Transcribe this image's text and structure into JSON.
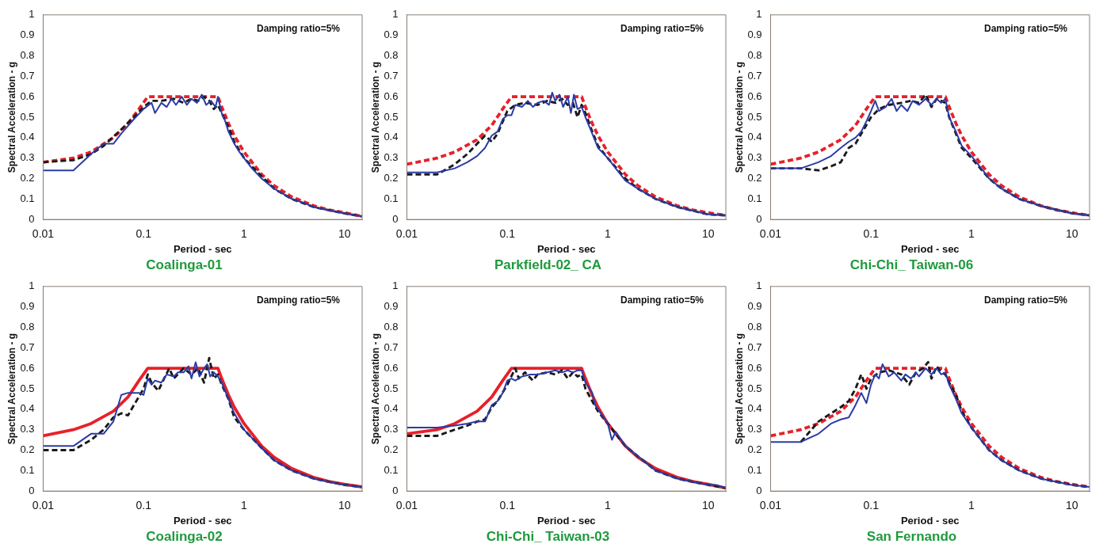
{
  "chart_data": [
    {
      "type": "line",
      "title": "Coalinga-01",
      "xlabel": "Period - sec",
      "ylabel": "Spectral Acceleration - g",
      "annotations": [
        "Damping ratio=5%"
      ],
      "log": "x",
      "grid": false,
      "marker": "none",
      "xlim": [
        0.01,
        15
      ],
      "xticks": [
        0.01,
        0.1,
        1,
        10
      ],
      "ylim": [
        0,
        1
      ],
      "yticks": [
        0,
        0.1,
        0.2,
        0.3,
        0.4,
        0.5,
        0.6,
        0.7,
        0.8,
        0.9,
        1
      ],
      "series": [
        {
          "color": "#2b3ba6",
          "line_style": "solid",
          "x": [
            0.01,
            0.02,
            0.03,
            0.04,
            0.05,
            0.06,
            0.08,
            0.1,
            0.12,
            0.13,
            0.15,
            0.17,
            0.19,
            0.21,
            0.24,
            0.27,
            0.3,
            0.34,
            0.38,
            0.42,
            0.47,
            0.52,
            0.55,
            0.6,
            0.65,
            0.7,
            0.8,
            0.9,
            1,
            1.2,
            1.5,
            2,
            3,
            4,
            5,
            7,
            10,
            15
          ],
          "values": [
            0.24,
            0.24,
            0.32,
            0.37,
            0.37,
            0.42,
            0.49,
            0.54,
            0.57,
            0.52,
            0.57,
            0.55,
            0.59,
            0.56,
            0.6,
            0.56,
            0.59,
            0.57,
            0.61,
            0.56,
            0.58,
            0.55,
            0.6,
            0.52,
            0.48,
            0.43,
            0.37,
            0.33,
            0.3,
            0.25,
            0.2,
            0.15,
            0.1,
            0.08,
            0.06,
            0.045,
            0.03,
            0.015
          ]
        },
        {
          "color": "#1a1a1a",
          "line_style": "dashed",
          "x": [
            0.01,
            0.02,
            0.03,
            0.04,
            0.06,
            0.08,
            0.1,
            0.12,
            0.15,
            0.2,
            0.25,
            0.3,
            0.35,
            0.4,
            0.45,
            0.5,
            0.55,
            0.6,
            0.7,
            0.8,
            1,
            1.5,
            2,
            3,
            5,
            10,
            15
          ],
          "values": [
            0.28,
            0.29,
            0.32,
            0.36,
            0.44,
            0.5,
            0.55,
            0.58,
            0.58,
            0.59,
            0.57,
            0.59,
            0.58,
            0.6,
            0.58,
            0.54,
            0.56,
            0.52,
            0.45,
            0.38,
            0.3,
            0.21,
            0.15,
            0.1,
            0.06,
            0.03,
            0.015
          ]
        },
        {
          "color": "#e8202a",
          "line_style": "dashed",
          "x": [
            0.01,
            0.02,
            0.03,
            0.05,
            0.07,
            0.09,
            0.11,
            0.55,
            0.6,
            0.7,
            0.8,
            1,
            1.5,
            2,
            3,
            5,
            7,
            10,
            15
          ],
          "values": [
            0.28,
            0.3,
            0.33,
            0.4,
            0.47,
            0.54,
            0.6,
            0.6,
            0.55,
            0.47,
            0.41,
            0.33,
            0.22,
            0.165,
            0.11,
            0.066,
            0.047,
            0.033,
            0.015
          ]
        }
      ]
    },
    {
      "type": "line",
      "title": "Parkfield-02_ CA",
      "xlabel": "Period - sec",
      "ylabel": "Spectral Acceleration - g",
      "annotations": [
        "Damping ratio=5%"
      ],
      "log": "x",
      "grid": false,
      "marker": "none",
      "xlim": [
        0.01,
        15
      ],
      "xticks": [
        0.01,
        0.1,
        1,
        10
      ],
      "ylim": [
        0,
        1
      ],
      "yticks": [
        0,
        0.1,
        0.2,
        0.3,
        0.4,
        0.5,
        0.6,
        0.7,
        0.8,
        0.9,
        1
      ],
      "series": [
        {
          "color": "#2b3ba6",
          "line_style": "solid",
          "x": [
            0.01,
            0.02,
            0.03,
            0.04,
            0.05,
            0.06,
            0.07,
            0.08,
            0.09,
            0.1,
            0.11,
            0.12,
            0.14,
            0.16,
            0.18,
            0.2,
            0.23,
            0.26,
            0.28,
            0.3,
            0.33,
            0.36,
            0.4,
            0.43,
            0.46,
            0.5,
            0.55,
            0.6,
            0.7,
            0.8,
            1,
            1.2,
            1.5,
            2,
            3,
            5,
            10,
            15
          ],
          "values": [
            0.23,
            0.23,
            0.25,
            0.28,
            0.31,
            0.35,
            0.41,
            0.43,
            0.49,
            0.51,
            0.51,
            0.56,
            0.55,
            0.58,
            0.55,
            0.57,
            0.58,
            0.56,
            0.62,
            0.58,
            0.61,
            0.55,
            0.6,
            0.52,
            0.61,
            0.54,
            0.55,
            0.5,
            0.42,
            0.35,
            0.3,
            0.25,
            0.19,
            0.15,
            0.1,
            0.06,
            0.025,
            0.02
          ]
        },
        {
          "color": "#1a1a1a",
          "line_style": "dashed",
          "x": [
            0.01,
            0.02,
            0.03,
            0.04,
            0.05,
            0.06,
            0.07,
            0.08,
            0.1,
            0.12,
            0.15,
            0.2,
            0.25,
            0.3,
            0.35,
            0.4,
            0.45,
            0.5,
            0.55,
            0.6,
            0.7,
            0.8,
            1,
            1.5,
            2,
            3,
            5,
            10,
            15
          ],
          "values": [
            0.22,
            0.22,
            0.27,
            0.32,
            0.37,
            0.41,
            0.38,
            0.42,
            0.53,
            0.56,
            0.57,
            0.56,
            0.58,
            0.57,
            0.59,
            0.56,
            0.57,
            0.5,
            0.56,
            0.52,
            0.43,
            0.36,
            0.3,
            0.2,
            0.15,
            0.1,
            0.06,
            0.025,
            0.02
          ]
        },
        {
          "color": "#e8202a",
          "line_style": "dashed",
          "x": [
            0.01,
            0.02,
            0.03,
            0.05,
            0.07,
            0.09,
            0.11,
            0.55,
            0.6,
            0.7,
            0.8,
            1,
            1.5,
            2,
            3,
            5,
            7,
            10,
            15
          ],
          "values": [
            0.27,
            0.3,
            0.33,
            0.39,
            0.46,
            0.54,
            0.6,
            0.6,
            0.55,
            0.47,
            0.41,
            0.33,
            0.22,
            0.165,
            0.11,
            0.066,
            0.047,
            0.033,
            0.02
          ]
        }
      ]
    },
    {
      "type": "line",
      "title": "Chi-Chi_ Taiwan-06",
      "xlabel": "Period - sec",
      "ylabel": "Spectral Acceleration - g",
      "annotations": [
        "Damping ratio=5%"
      ],
      "log": "x",
      "grid": false,
      "marker": "none",
      "xlim": [
        0.01,
        15
      ],
      "xticks": [
        0.01,
        0.1,
        1,
        10
      ],
      "ylim": [
        0,
        1
      ],
      "yticks": [
        0,
        0.1,
        0.2,
        0.3,
        0.4,
        0.5,
        0.6,
        0.7,
        0.8,
        0.9,
        1
      ],
      "series": [
        {
          "color": "#2b3ba6",
          "line_style": "solid",
          "x": [
            0.01,
            0.02,
            0.03,
            0.04,
            0.05,
            0.06,
            0.07,
            0.08,
            0.09,
            0.1,
            0.11,
            0.12,
            0.14,
            0.16,
            0.18,
            0.2,
            0.23,
            0.26,
            0.3,
            0.35,
            0.4,
            0.45,
            0.5,
            0.55,
            0.6,
            0.7,
            0.8,
            1,
            1.3,
            1.5,
            2,
            3,
            5,
            10,
            15
          ],
          "values": [
            0.25,
            0.25,
            0.28,
            0.31,
            0.35,
            0.38,
            0.4,
            0.43,
            0.48,
            0.53,
            0.58,
            0.53,
            0.55,
            0.59,
            0.53,
            0.56,
            0.53,
            0.58,
            0.56,
            0.59,
            0.56,
            0.59,
            0.57,
            0.59,
            0.5,
            0.43,
            0.36,
            0.31,
            0.24,
            0.2,
            0.15,
            0.1,
            0.065,
            0.03,
            0.02
          ]
        },
        {
          "color": "#1a1a1a",
          "line_style": "dashed",
          "x": [
            0.01,
            0.02,
            0.03,
            0.04,
            0.05,
            0.06,
            0.07,
            0.08,
            0.1,
            0.12,
            0.15,
            0.2,
            0.25,
            0.3,
            0.35,
            0.4,
            0.45,
            0.5,
            0.55,
            0.6,
            0.7,
            0.8,
            1,
            1.5,
            2,
            3,
            5,
            10,
            15
          ],
          "values": [
            0.25,
            0.25,
            0.24,
            0.26,
            0.28,
            0.35,
            0.37,
            0.42,
            0.5,
            0.54,
            0.56,
            0.57,
            0.58,
            0.57,
            0.61,
            0.55,
            0.59,
            0.58,
            0.57,
            0.5,
            0.42,
            0.35,
            0.3,
            0.2,
            0.15,
            0.1,
            0.065,
            0.03,
            0.02
          ]
        },
        {
          "color": "#e8202a",
          "line_style": "dashed",
          "x": [
            0.01,
            0.02,
            0.03,
            0.05,
            0.07,
            0.09,
            0.11,
            0.55,
            0.6,
            0.7,
            0.8,
            1,
            1.5,
            2,
            3,
            5,
            7,
            10,
            15
          ],
          "values": [
            0.27,
            0.3,
            0.33,
            0.39,
            0.46,
            0.54,
            0.6,
            0.6,
            0.55,
            0.47,
            0.41,
            0.33,
            0.22,
            0.165,
            0.11,
            0.066,
            0.047,
            0.033,
            0.02
          ]
        }
      ]
    },
    {
      "type": "line",
      "title": "Coalinga-02",
      "xlabel": "Period - sec",
      "ylabel": "Spectral Acceleration - g",
      "annotations": [
        "Damping ratio=5%"
      ],
      "log": "x",
      "grid": false,
      "marker": "none",
      "xlim": [
        0.01,
        15
      ],
      "xticks": [
        0.01,
        0.1,
        1,
        10
      ],
      "ylim": [
        0,
        1
      ],
      "yticks": [
        0,
        0.1,
        0.2,
        0.3,
        0.4,
        0.5,
        0.6,
        0.7,
        0.8,
        0.9,
        1
      ],
      "series": [
        {
          "color": "#2b3ba6",
          "line_style": "solid",
          "x": [
            0.01,
            0.02,
            0.03,
            0.04,
            0.05,
            0.06,
            0.07,
            0.09,
            0.1,
            0.11,
            0.12,
            0.13,
            0.15,
            0.17,
            0.2,
            0.22,
            0.25,
            0.28,
            0.3,
            0.33,
            0.36,
            0.4,
            0.43,
            0.46,
            0.5,
            0.55,
            0.6,
            0.7,
            0.8,
            1,
            1.5,
            2,
            3,
            5,
            10,
            15
          ],
          "values": [
            0.22,
            0.22,
            0.28,
            0.28,
            0.34,
            0.47,
            0.48,
            0.48,
            0.47,
            0.55,
            0.52,
            0.54,
            0.53,
            0.57,
            0.56,
            0.58,
            0.58,
            0.61,
            0.55,
            0.63,
            0.56,
            0.6,
            0.62,
            0.56,
            0.58,
            0.56,
            0.53,
            0.45,
            0.38,
            0.3,
            0.21,
            0.15,
            0.1,
            0.06,
            0.03,
            0.02
          ]
        },
        {
          "color": "#1a1a1a",
          "line_style": "dashed",
          "x": [
            0.01,
            0.02,
            0.03,
            0.04,
            0.05,
            0.06,
            0.07,
            0.08,
            0.1,
            0.11,
            0.12,
            0.14,
            0.16,
            0.18,
            0.2,
            0.25,
            0.3,
            0.35,
            0.4,
            0.45,
            0.5,
            0.55,
            0.6,
            0.7,
            0.8,
            1,
            1.5,
            2,
            3,
            5,
            10,
            15
          ],
          "values": [
            0.2,
            0.2,
            0.25,
            0.3,
            0.36,
            0.38,
            0.37,
            0.42,
            0.5,
            0.57,
            0.53,
            0.49,
            0.55,
            0.6,
            0.55,
            0.6,
            0.57,
            0.6,
            0.53,
            0.65,
            0.55,
            0.57,
            0.52,
            0.45,
            0.36,
            0.3,
            0.21,
            0.15,
            0.1,
            0.06,
            0.03,
            0.02
          ]
        },
        {
          "color": "#e8202a",
          "line_style": "solid",
          "x": [
            0.01,
            0.02,
            0.03,
            0.05,
            0.07,
            0.09,
            0.11,
            0.55,
            0.6,
            0.7,
            0.8,
            1,
            1.5,
            2,
            3,
            5,
            7,
            10,
            15
          ],
          "values": [
            0.27,
            0.3,
            0.33,
            0.39,
            0.46,
            0.54,
            0.6,
            0.6,
            0.55,
            0.47,
            0.41,
            0.33,
            0.22,
            0.165,
            0.11,
            0.066,
            0.047,
            0.033,
            0.02
          ]
        }
      ]
    },
    {
      "type": "line",
      "title": "Chi-Chi_ Taiwan-03",
      "xlabel": "Period - sec",
      "ylabel": "Spectral Acceleration - g",
      "annotations": [
        "Damping ratio=5%"
      ],
      "log": "x",
      "grid": false,
      "marker": "none",
      "xlim": [
        0.01,
        15
      ],
      "xticks": [
        0.01,
        0.1,
        1,
        10
      ],
      "ylim": [
        0,
        1
      ],
      "yticks": [
        0,
        0.1,
        0.2,
        0.3,
        0.4,
        0.5,
        0.6,
        0.7,
        0.8,
        0.9,
        1
      ],
      "series": [
        {
          "color": "#2b3ba6",
          "line_style": "solid",
          "x": [
            0.01,
            0.02,
            0.03,
            0.04,
            0.05,
            0.06,
            0.07,
            0.08,
            0.09,
            0.1,
            0.11,
            0.12,
            0.14,
            0.17,
            0.2,
            0.25,
            0.3,
            0.35,
            0.4,
            0.45,
            0.5,
            0.55,
            0.6,
            0.7,
            0.75,
            0.8,
            1,
            1.1,
            1.2,
            1.5,
            2,
            3,
            5,
            10,
            12,
            15
          ],
          "values": [
            0.31,
            0.31,
            0.32,
            0.33,
            0.34,
            0.34,
            0.42,
            0.44,
            0.48,
            0.54,
            0.55,
            0.54,
            0.56,
            0.57,
            0.57,
            0.58,
            0.59,
            0.58,
            0.59,
            0.58,
            0.59,
            0.59,
            0.53,
            0.48,
            0.42,
            0.4,
            0.33,
            0.25,
            0.29,
            0.22,
            0.17,
            0.1,
            0.06,
            0.03,
            0.03,
            0.015
          ]
        },
        {
          "color": "#1a1a1a",
          "line_style": "dashed",
          "x": [
            0.01,
            0.02,
            0.03,
            0.04,
            0.05,
            0.06,
            0.07,
            0.08,
            0.1,
            0.12,
            0.13,
            0.15,
            0.18,
            0.2,
            0.25,
            0.3,
            0.35,
            0.4,
            0.45,
            0.5,
            0.55,
            0.6,
            0.7,
            0.8,
            1,
            1.5,
            2,
            3,
            5,
            10,
            15
          ],
          "values": [
            0.27,
            0.27,
            0.3,
            0.32,
            0.34,
            0.35,
            0.41,
            0.44,
            0.52,
            0.6,
            0.55,
            0.58,
            0.54,
            0.57,
            0.58,
            0.57,
            0.59,
            0.55,
            0.58,
            0.56,
            0.57,
            0.5,
            0.44,
            0.39,
            0.33,
            0.22,
            0.17,
            0.1,
            0.06,
            0.03,
            0.015
          ]
        },
        {
          "color": "#e8202a",
          "line_style": "solid",
          "x": [
            0.01,
            0.02,
            0.03,
            0.05,
            0.07,
            0.09,
            0.11,
            0.55,
            0.6,
            0.7,
            0.8,
            1,
            1.5,
            2,
            3,
            5,
            7,
            10,
            15
          ],
          "values": [
            0.28,
            0.3,
            0.33,
            0.39,
            0.46,
            0.54,
            0.6,
            0.6,
            0.55,
            0.47,
            0.41,
            0.33,
            0.22,
            0.165,
            0.11,
            0.066,
            0.047,
            0.033,
            0.015
          ]
        }
      ]
    },
    {
      "type": "line",
      "title": "San Fernando",
      "xlabel": "Period - sec",
      "ylabel": "Spectral Acceleration - g",
      "annotations": [
        "Damping ratio=5%"
      ],
      "log": "x",
      "grid": false,
      "marker": "none",
      "xlim": [
        0.01,
        15
      ],
      "xticks": [
        0.01,
        0.1,
        1,
        10
      ],
      "ylim": [
        0,
        1
      ],
      "yticks": [
        0,
        0.1,
        0.2,
        0.3,
        0.4,
        0.5,
        0.6,
        0.7,
        0.8,
        0.9,
        1
      ],
      "series": [
        {
          "color": "#2b3ba6",
          "line_style": "solid",
          "x": [
            0.01,
            0.02,
            0.03,
            0.04,
            0.05,
            0.06,
            0.07,
            0.08,
            0.09,
            0.1,
            0.11,
            0.12,
            0.13,
            0.15,
            0.17,
            0.2,
            0.22,
            0.25,
            0.28,
            0.3,
            0.35,
            0.4,
            0.45,
            0.5,
            0.55,
            0.6,
            0.7,
            0.8,
            1,
            1.5,
            2,
            3,
            5,
            10,
            15
          ],
          "values": [
            0.24,
            0.24,
            0.28,
            0.33,
            0.35,
            0.36,
            0.42,
            0.48,
            0.43,
            0.52,
            0.57,
            0.55,
            0.62,
            0.56,
            0.58,
            0.54,
            0.57,
            0.55,
            0.58,
            0.56,
            0.6,
            0.57,
            0.6,
            0.57,
            0.58,
            0.52,
            0.45,
            0.38,
            0.31,
            0.2,
            0.15,
            0.1,
            0.06,
            0.03,
            0.02
          ]
        },
        {
          "color": "#1a1a1a",
          "line_style": "dashed",
          "x": [
            0.02,
            0.03,
            0.04,
            0.05,
            0.06,
            0.07,
            0.08,
            0.09,
            0.1,
            0.12,
            0.15,
            0.2,
            0.24,
            0.28,
            0.33,
            0.37,
            0.4,
            0.45,
            0.5,
            0.55,
            0.6,
            0.7,
            0.8,
            1,
            1.5,
            2,
            3,
            5,
            10,
            15
          ],
          "values": [
            0.24,
            0.34,
            0.38,
            0.41,
            0.44,
            0.5,
            0.57,
            0.5,
            0.55,
            0.58,
            0.59,
            0.57,
            0.52,
            0.58,
            0.6,
            0.63,
            0.55,
            0.61,
            0.58,
            0.57,
            0.53,
            0.47,
            0.39,
            0.31,
            0.2,
            0.15,
            0.1,
            0.06,
            0.03,
            0.02
          ]
        },
        {
          "color": "#e8202a",
          "line_style": "dashed",
          "x": [
            0.01,
            0.02,
            0.03,
            0.05,
            0.07,
            0.09,
            0.11,
            0.55,
            0.6,
            0.7,
            0.8,
            1,
            1.5,
            2,
            3,
            5,
            7,
            10,
            15
          ],
          "values": [
            0.27,
            0.3,
            0.33,
            0.39,
            0.46,
            0.54,
            0.6,
            0.6,
            0.55,
            0.47,
            0.41,
            0.33,
            0.22,
            0.165,
            0.11,
            0.066,
            0.047,
            0.033,
            0.02
          ]
        }
      ]
    }
  ]
}
